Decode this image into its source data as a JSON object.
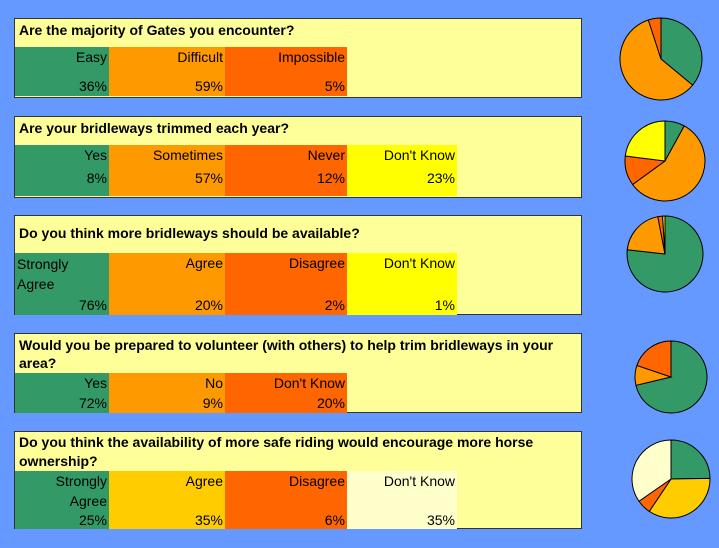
{
  "colors": {
    "green": "#339966",
    "orange": "#ff9900",
    "red": "#ff6600",
    "yellow": "#ffff00",
    "pale_yellow": "#ffffcc",
    "gold": "#ffcc00",
    "panel": "#ffff99",
    "background": "#6699ff"
  },
  "chart_data": [
    {
      "type": "pie",
      "title": "Are the majority of Gates you encounter?",
      "categories": [
        "Easy",
        "Difficult",
        "Impossible"
      ],
      "values": [
        "36%",
        "59%",
        "5%"
      ],
      "numeric": [
        36,
        59,
        5
      ],
      "colors": [
        "#339966",
        "#ff9900",
        "#ff6600"
      ]
    },
    {
      "type": "pie",
      "title": "Are your bridleways trimmed each year?",
      "categories": [
        "Yes",
        "Sometimes",
        "Never",
        "Don't Know"
      ],
      "values": [
        "8%",
        "57%",
        "12%",
        "23%"
      ],
      "numeric": [
        8,
        57,
        12,
        23
      ],
      "colors": [
        "#339966",
        "#ff9900",
        "#ff6600",
        "#ffff00"
      ]
    },
    {
      "type": "pie",
      "title": "Do you think more bridleways should be available?",
      "categories": [
        "Strongly Agree",
        "Agree",
        "Disagree",
        "Don't Know"
      ],
      "values": [
        "76%",
        "20%",
        "2%",
        "1%"
      ],
      "numeric": [
        76,
        20,
        2,
        1
      ],
      "colors": [
        "#339966",
        "#ff9900",
        "#ff6600",
        "#ffff00"
      ]
    },
    {
      "type": "pie",
      "title": "Would you be prepared to volunteer (with others) to help trim bridleways in your area?",
      "categories": [
        "Yes",
        "No",
        "Don't Know"
      ],
      "values": [
        "72%",
        "9%",
        "20%"
      ],
      "numeric": [
        72,
        9,
        20
      ],
      "colors": [
        "#339966",
        "#ff9900",
        "#ff6600"
      ]
    },
    {
      "type": "pie",
      "title": "Do you think the availability of more safe riding would encourage more horse ownership?",
      "categories": [
        "Strongly Agree",
        "Agree",
        "Disagree",
        "Don't Know"
      ],
      "values": [
        "25%",
        "35%",
        "6%",
        "35%"
      ],
      "numeric": [
        25,
        35,
        6,
        35
      ],
      "colors": [
        "#339966",
        "#ffcc00",
        "#ff6600",
        "#ffffcc"
      ]
    }
  ]
}
